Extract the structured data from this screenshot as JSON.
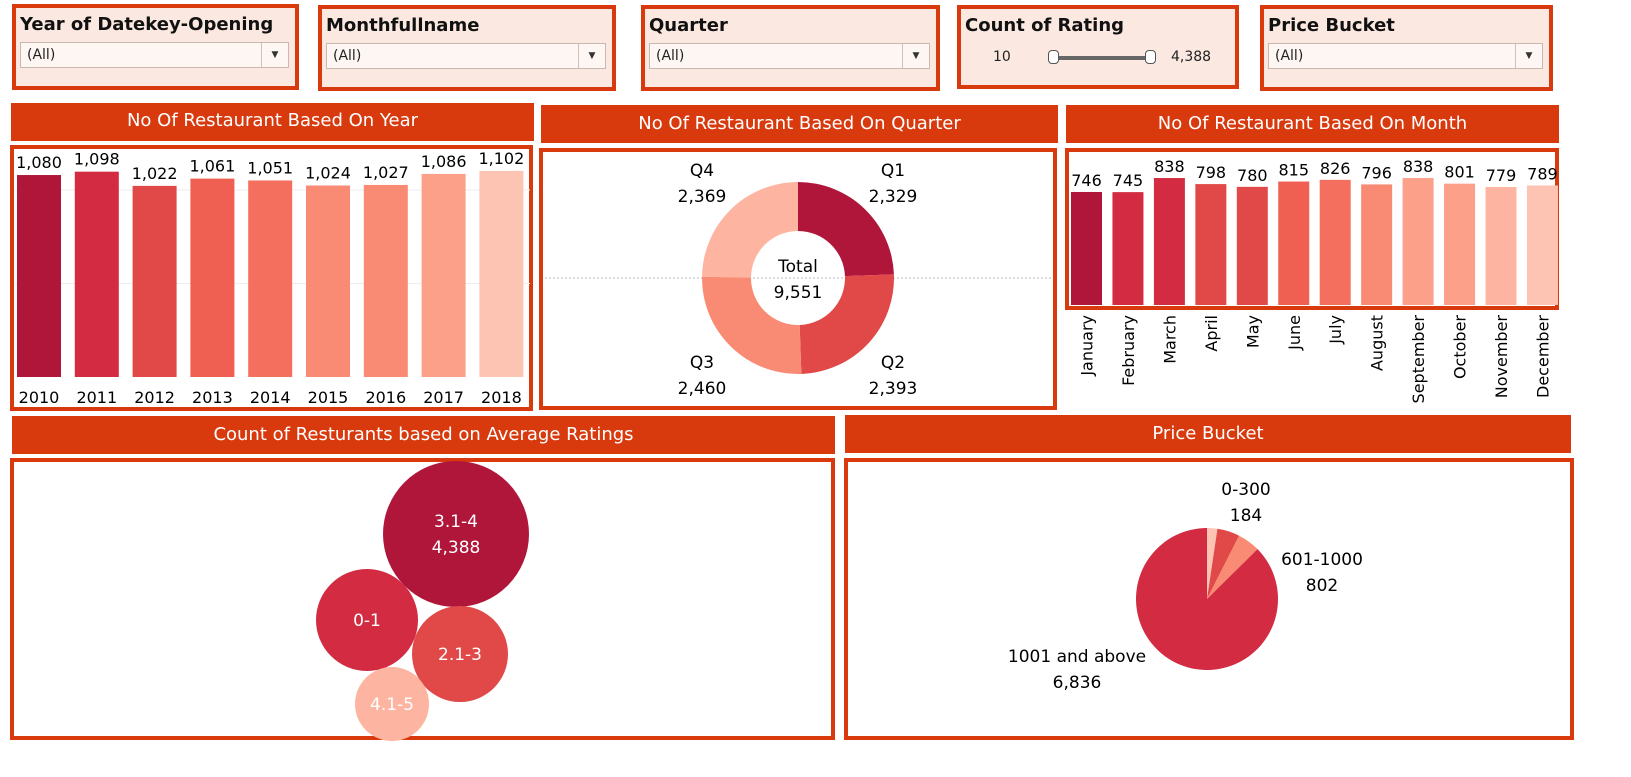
{
  "filters": {
    "year": {
      "title": "Year of Datekey-Opening",
      "value": "(All)"
    },
    "month": {
      "title": "Monthfullname",
      "value": "(All)"
    },
    "quarter": {
      "title": "Quarter",
      "value": "(All)"
    },
    "rating": {
      "title": "Count of Rating",
      "min": "10",
      "max": "4,388"
    },
    "price": {
      "title": "Price Bucket",
      "value": "(All)"
    }
  },
  "colors": {
    "accent": "#d83a0e",
    "filter_bg": "#fbe8e0",
    "reds": [
      "#b0153a",
      "#d22b42",
      "#e14848",
      "#ef5f52",
      "#f46f5d",
      "#f98a74",
      "#fca08a",
      "#fdb4a0",
      "#fdc4b4"
    ]
  },
  "chart_data": [
    {
      "id": "year",
      "type": "bar",
      "title": "No Of Restaurant Based On Year",
      "categories": [
        "2010",
        "2011",
        "2012",
        "2013",
        "2014",
        "2015",
        "2016",
        "2017",
        "2018"
      ],
      "values": [
        1080,
        1098,
        1022,
        1061,
        1051,
        1024,
        1027,
        1086,
        1102
      ],
      "labels": [
        "1,080",
        "1,098",
        "1,022",
        "1,061",
        "1,051",
        "1,024",
        "1,027",
        "1,086",
        "1,102"
      ],
      "grid": true
    },
    {
      "id": "quarter",
      "type": "pie",
      "title": "No Of Restaurant Based On Quarter",
      "categories": [
        "Q1",
        "Q2",
        "Q3",
        "Q4"
      ],
      "values": [
        2329,
        2393,
        2460,
        2369
      ],
      "labels": [
        "2,329",
        "2,393",
        "2,460",
        "2,369"
      ],
      "center_label": "Total",
      "center_value": "9,551"
    },
    {
      "id": "month",
      "type": "bar",
      "title": "No Of Restaurant Based On Month",
      "categories": [
        "January",
        "February",
        "March",
        "April",
        "May",
        "June",
        "July",
        "August",
        "September",
        "October",
        "November",
        "December"
      ],
      "values": [
        746,
        745,
        838,
        798,
        780,
        815,
        826,
        796,
        838,
        801,
        779,
        789
      ],
      "labels": [
        "746",
        "745",
        "838",
        "798",
        "780",
        "815",
        "826",
        "796",
        "838",
        "801",
        "779",
        "789"
      ]
    },
    {
      "id": "ratings",
      "type": "bubble",
      "title": "Count of Resturants based on Average Ratings",
      "categories": [
        "3.1-4",
        "0-1",
        "2.1-3",
        "4.1-5"
      ],
      "value_labels": [
        "4,388",
        "",
        "",
        ""
      ]
    },
    {
      "id": "price",
      "type": "pie",
      "title": "Price Bucket",
      "categories": [
        "0-300",
        "601-1000",
        "1001 and above"
      ],
      "values": [
        184,
        802,
        6836
      ],
      "labels": [
        "184",
        "802",
        "6,836"
      ]
    }
  ]
}
